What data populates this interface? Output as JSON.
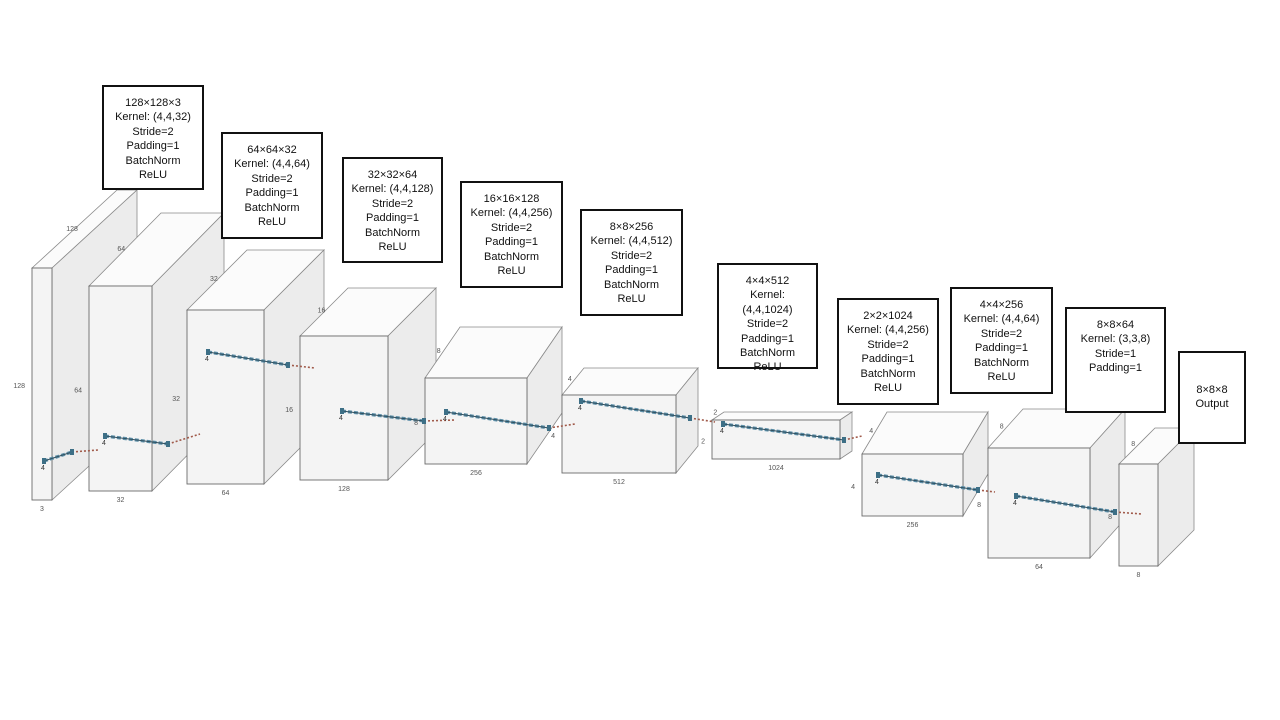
{
  "blocks": [
    {
      "id": "b0",
      "dim_w": "128",
      "dim_h": "128",
      "dim_bottom": "3"
    },
    {
      "id": "b1",
      "dim_w": "64",
      "dim_h": "64",
      "dim_bottom": "32"
    },
    {
      "id": "b2",
      "dim_w": "32",
      "dim_h": "32",
      "dim_bottom": "64"
    },
    {
      "id": "b3",
      "dim_w": "16",
      "dim_h": "16",
      "dim_bottom": "128"
    },
    {
      "id": "b4",
      "dim_w": "8",
      "dim_h": "8",
      "dim_bottom": "256"
    },
    {
      "id": "b5",
      "dim_w": "4",
      "dim_h": "4",
      "dim_bottom": "512"
    },
    {
      "id": "b6",
      "dim_w": "2",
      "dim_h": "2",
      "dim_bottom": "1024"
    },
    {
      "id": "b7",
      "dim_w": "4",
      "dim_h": "4",
      "dim_bottom": "256"
    },
    {
      "id": "b8",
      "dim_w": "8",
      "dim_h": "8",
      "dim_bottom": "64"
    },
    {
      "id": "b9",
      "dim_w": "8",
      "dim_h": "8",
      "dim_bottom": "8"
    }
  ],
  "annotations": [
    {
      "lines": [
        "128×128×3",
        "Kernel: (4,4,32)",
        "Stride=2",
        "Padding=1",
        "BatchNorm",
        "ReLU"
      ]
    },
    {
      "lines": [
        "64×64×32",
        "Kernel: (4,4,64)",
        "Stride=2",
        "Padding=1",
        "BatchNorm",
        "ReLU"
      ]
    },
    {
      "lines": [
        "32×32×64",
        "Kernel: (4,4,128)",
        "Stride=2",
        "Padding=1",
        "BatchNorm",
        "ReLU"
      ]
    },
    {
      "lines": [
        "16×16×128",
        "Kernel: (4,4,256)",
        "Stride=2",
        "Padding=1",
        "BatchNorm",
        "ReLU"
      ]
    },
    {
      "lines": [
        "8×8×256",
        "Kernel: (4,4,512)",
        "Stride=2",
        "Padding=1",
        "BatchNorm",
        "ReLU"
      ]
    },
    {
      "lines": [
        "4×4×512",
        "Kernel:",
        "(4,4,1024)",
        "Stride=2",
        "Padding=1",
        "BatchNorm",
        "ReLU"
      ]
    },
    {
      "lines": [
        "2×2×1024",
        "Kernel: (4,4,256)",
        "Stride=2",
        "Padding=1",
        "BatchNorm",
        "ReLU"
      ]
    },
    {
      "lines": [
        "4×4×256",
        "Kernel: (4,4,64)",
        "Stride=2",
        "Padding=1",
        "BatchNorm",
        "ReLU"
      ]
    },
    {
      "lines": [
        "8×8×64",
        "Kernel: (3,3,8)",
        "Stride=1",
        "Padding=1"
      ]
    },
    {
      "lines": [
        "8×8×8",
        "Output"
      ]
    }
  ],
  "kernel_label": "4"
}
